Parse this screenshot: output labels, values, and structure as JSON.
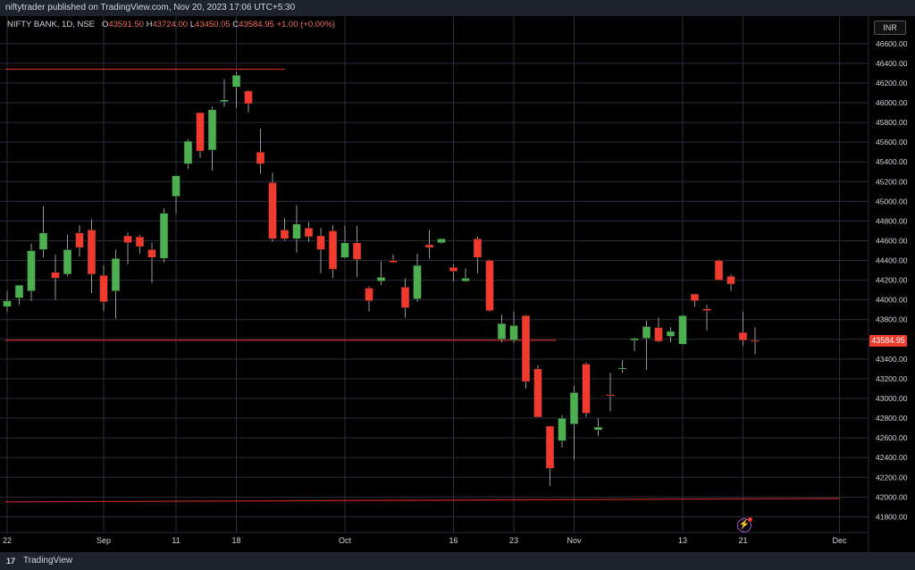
{
  "header": {
    "published": "niftytrader published on TradingView.com, Nov 20, 2023 17:06 UTC+5:30"
  },
  "legend": {
    "symbol": "NIFTY BANK, 1D, NSE",
    "open_label": "O",
    "open": "43591.50",
    "high_label": "H",
    "high": "43724.00",
    "low_label": "L",
    "low": "43450.05",
    "close_label": "C",
    "close": "43584.95",
    "change": "+1.00 (+0.00%)"
  },
  "currency": "INR",
  "last_price_label": "43584.95",
  "footer": {
    "brand": "TradingView",
    "logo": "17"
  },
  "colors": {
    "up": "#4caf50",
    "down": "#ef3a2d",
    "grid": "#2a2e39",
    "level": "#c62828",
    "axis_text": "#d1d4dc"
  },
  "chart_data": {
    "type": "candlestick",
    "y_ticks": [
      "41800.00",
      "42000.00",
      "42200.00",
      "42400.00",
      "42600.00",
      "42800.00",
      "43000.00",
      "43200.00",
      "43400.00",
      "43600.00",
      "43800.00",
      "44000.00",
      "44200.00",
      "44400.00",
      "44600.00",
      "44800.00",
      "45000.00",
      "45200.00",
      "45400.00",
      "45600.00",
      "45800.00",
      "46000.00",
      "46200.00",
      "46400.00",
      "46600.00"
    ],
    "ylim": [
      41740,
      46680
    ],
    "x_labels": [
      {
        "label": "22",
        "index": 0
      },
      {
        "label": "Sep",
        "index": 8
      },
      {
        "label": "11",
        "index": 14
      },
      {
        "label": "18",
        "index": 19
      },
      {
        "label": "Oct",
        "index": 28
      },
      {
        "label": "16",
        "index": 37
      },
      {
        "label": "23",
        "index": 42
      },
      {
        "label": "Nov",
        "index": 47
      },
      {
        "label": "13",
        "index": 56
      },
      {
        "label": "21",
        "index": 61
      },
      {
        "label": "Dec",
        "index": 69
      }
    ],
    "levels": [
      {
        "name": "resistance",
        "y": 46340,
        "x_start": 0,
        "x_end": 23
      },
      {
        "name": "support",
        "y": 43590,
        "x_start": 0,
        "x_end": 45.5
      },
      {
        "name": "trend",
        "y": 41950,
        "y_end": 41985,
        "x_start": 0,
        "x_end": 69
      }
    ],
    "candles": [
      {
        "o": 43930,
        "h": 44090,
        "l": 43880,
        "c": 43990
      },
      {
        "o": 44020,
        "h": 44130,
        "l": 43950,
        "c": 44150
      },
      {
        "o": 44090,
        "h": 44570,
        "l": 43990,
        "c": 44500
      },
      {
        "o": 44510,
        "h": 44950,
        "l": 44430,
        "c": 44680
      },
      {
        "o": 44280,
        "h": 44460,
        "l": 44000,
        "c": 44220
      },
      {
        "o": 44260,
        "h": 44660,
        "l": 44240,
        "c": 44510
      },
      {
        "o": 44680,
        "h": 44760,
        "l": 44440,
        "c": 44530
      },
      {
        "o": 44710,
        "h": 44820,
        "l": 44070,
        "c": 44260
      },
      {
        "o": 44250,
        "h": 44350,
        "l": 43890,
        "c": 43980
      },
      {
        "o": 44090,
        "h": 44510,
        "l": 43810,
        "c": 44420
      },
      {
        "o": 44650,
        "h": 44680,
        "l": 44360,
        "c": 44580
      },
      {
        "o": 44640,
        "h": 44660,
        "l": 44470,
        "c": 44540
      },
      {
        "o": 44510,
        "h": 44580,
        "l": 44170,
        "c": 44430
      },
      {
        "o": 44420,
        "h": 44930,
        "l": 44380,
        "c": 44880
      },
      {
        "o": 45050,
        "h": 45220,
        "l": 44880,
        "c": 45260
      },
      {
        "o": 45380,
        "h": 45630,
        "l": 45330,
        "c": 45610
      },
      {
        "o": 45900,
        "h": 45890,
        "l": 45440,
        "c": 45510
      },
      {
        "o": 45520,
        "h": 45960,
        "l": 45310,
        "c": 45930
      },
      {
        "o": 46010,
        "h": 46240,
        "l": 45960,
        "c": 46030
      },
      {
        "o": 46160,
        "h": 46310,
        "l": 45950,
        "c": 46280
      },
      {
        "o": 46120,
        "h": 46130,
        "l": 45900,
        "c": 45990
      },
      {
        "o": 45500,
        "h": 45740,
        "l": 45280,
        "c": 45380
      },
      {
        "o": 45190,
        "h": 45290,
        "l": 44590,
        "c": 44620
      },
      {
        "o": 44710,
        "h": 44830,
        "l": 44600,
        "c": 44620
      },
      {
        "o": 44620,
        "h": 44960,
        "l": 44480,
        "c": 44770
      },
      {
        "o": 44730,
        "h": 44790,
        "l": 44590,
        "c": 44640
      },
      {
        "o": 44650,
        "h": 44730,
        "l": 44270,
        "c": 44510
      },
      {
        "o": 44700,
        "h": 44760,
        "l": 44220,
        "c": 44310
      },
      {
        "o": 44430,
        "h": 44750,
        "l": 44420,
        "c": 44580
      },
      {
        "o": 44580,
        "h": 44750,
        "l": 44230,
        "c": 44410
      },
      {
        "o": 44120,
        "h": 44140,
        "l": 43880,
        "c": 43990
      },
      {
        "o": 44190,
        "h": 44390,
        "l": 44150,
        "c": 44230
      },
      {
        "o": 44400,
        "h": 44460,
        "l": 44380,
        "c": 44380
      },
      {
        "o": 44130,
        "h": 44220,
        "l": 43820,
        "c": 43920
      },
      {
        "o": 44010,
        "h": 44470,
        "l": 43980,
        "c": 44350
      },
      {
        "o": 44560,
        "h": 44710,
        "l": 44420,
        "c": 44530
      },
      {
        "o": 44580,
        "h": 44600,
        "l": 44570,
        "c": 44620
      },
      {
        "o": 44330,
        "h": 44360,
        "l": 44190,
        "c": 44290
      },
      {
        "o": 44190,
        "h": 44320,
        "l": 44180,
        "c": 44220
      },
      {
        "o": 44620,
        "h": 44640,
        "l": 44270,
        "c": 44430
      },
      {
        "o": 44400,
        "h": 44410,
        "l": 43880,
        "c": 43890
      },
      {
        "o": 43600,
        "h": 43850,
        "l": 43570,
        "c": 43760
      },
      {
        "o": 43590,
        "h": 43880,
        "l": 43560,
        "c": 43740
      },
      {
        "o": 43840,
        "h": 43850,
        "l": 43100,
        "c": 43170
      },
      {
        "o": 43300,
        "h": 43340,
        "l": 42850,
        "c": 42810
      },
      {
        "o": 42720,
        "h": 42720,
        "l": 42110,
        "c": 42290
      },
      {
        "o": 42570,
        "h": 42830,
        "l": 42500,
        "c": 42800
      },
      {
        "o": 42740,
        "h": 43130,
        "l": 42380,
        "c": 43060
      },
      {
        "o": 43350,
        "h": 43370,
        "l": 42810,
        "c": 42850
      },
      {
        "o": 42680,
        "h": 42800,
        "l": 42620,
        "c": 42710
      },
      {
        "o": 43040,
        "h": 43260,
        "l": 42870,
        "c": 43030
      },
      {
        "o": 43300,
        "h": 43390,
        "l": 43260,
        "c": 43310
      },
      {
        "o": 43590,
        "h": 43620,
        "l": 43480,
        "c": 43610
      },
      {
        "o": 43610,
        "h": 43790,
        "l": 43290,
        "c": 43730
      },
      {
        "o": 43720,
        "h": 43820,
        "l": 43570,
        "c": 43580
      },
      {
        "o": 43630,
        "h": 43720,
        "l": 43570,
        "c": 43680
      },
      {
        "o": 43550,
        "h": 43850,
        "l": 43540,
        "c": 43840
      },
      {
        "o": 44060,
        "h": 44040,
        "l": 43930,
        "c": 43990
      },
      {
        "o": 43910,
        "h": 43950,
        "l": 43690,
        "c": 43890
      },
      {
        "o": 44400,
        "h": 44410,
        "l": 44210,
        "c": 44200
      },
      {
        "o": 44240,
        "h": 44260,
        "l": 44090,
        "c": 44160
      },
      {
        "o": 43670,
        "h": 43880,
        "l": 43530,
        "c": 43590
      },
      {
        "o": 43590,
        "h": 43720,
        "l": 43450,
        "c": 43585
      }
    ]
  }
}
